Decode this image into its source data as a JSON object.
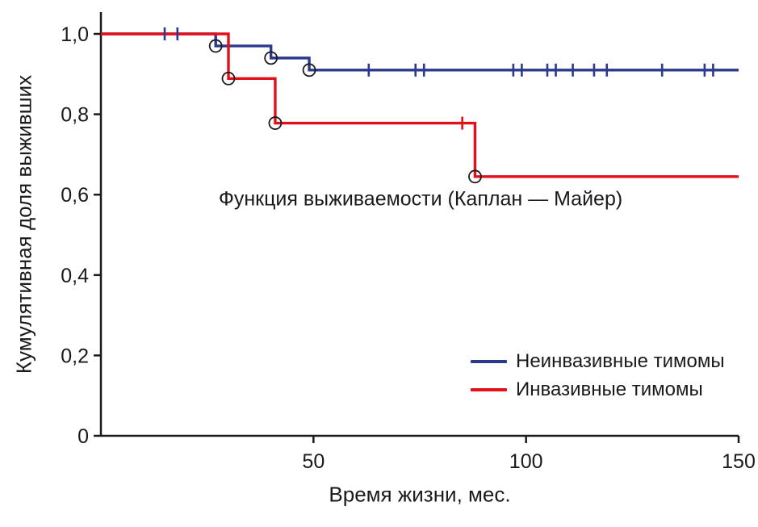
{
  "chart_data": {
    "type": "line",
    "variant": "kaplan-meier-step",
    "title": "Функция выживаемости (Каплан — Майер)",
    "xlabel": "Время жизни, мес.",
    "ylabel": "Кумулятивная доля выживших",
    "xlim": [
      0,
      150
    ],
    "ylim": [
      0,
      1.0
    ],
    "grid": false,
    "legend_position": "inside-bottom-right",
    "axis_color": "#1a1a1a",
    "marker_color": "#1a1a1a",
    "x_ticks": [
      {
        "value": 50,
        "label": "50"
      },
      {
        "value": 100,
        "label": "100"
      },
      {
        "value": 150,
        "label": "150"
      }
    ],
    "y_ticks": [
      {
        "value": 0,
        "label": "0"
      },
      {
        "value": 0.2,
        "label": "0,2"
      },
      {
        "value": 0.4,
        "label": "0,4"
      },
      {
        "value": 0.6,
        "label": "0,6"
      },
      {
        "value": 0.8,
        "label": "0,8"
      },
      {
        "value": 1.0,
        "label": "1,0"
      }
    ],
    "series": [
      {
        "name": "Неинвазивные тимомы",
        "color": "#2b3a8f",
        "steps": [
          [
            0,
            1.0
          ],
          [
            27,
            0.97
          ],
          [
            40,
            0.94
          ],
          [
            49,
            0.91
          ],
          [
            150,
            0.91
          ]
        ],
        "events": [
          [
            27,
            0.97
          ],
          [
            40,
            0.94
          ],
          [
            49,
            0.91
          ]
        ],
        "censored": [
          [
            15,
            1.0
          ],
          [
            18,
            1.0
          ],
          [
            63,
            0.91
          ],
          [
            74,
            0.91
          ],
          [
            76,
            0.91
          ],
          [
            97,
            0.91
          ],
          [
            99,
            0.91
          ],
          [
            105,
            0.91
          ],
          [
            107,
            0.91
          ],
          [
            111,
            0.91
          ],
          [
            116,
            0.91
          ],
          [
            119,
            0.91
          ],
          [
            132,
            0.91
          ],
          [
            142,
            0.91
          ],
          [
            144,
            0.91
          ]
        ]
      },
      {
        "name": "Инвазивные тимомы",
        "color": "#e3101c",
        "steps": [
          [
            0,
            1.0
          ],
          [
            30,
            0.889
          ],
          [
            41,
            0.778
          ],
          [
            88,
            0.645
          ],
          [
            150,
            0.645
          ]
        ],
        "events": [
          [
            30,
            0.889
          ],
          [
            41,
            0.778
          ],
          [
            88,
            0.645
          ]
        ],
        "censored": [
          [
            85,
            0.778
          ]
        ]
      }
    ]
  }
}
